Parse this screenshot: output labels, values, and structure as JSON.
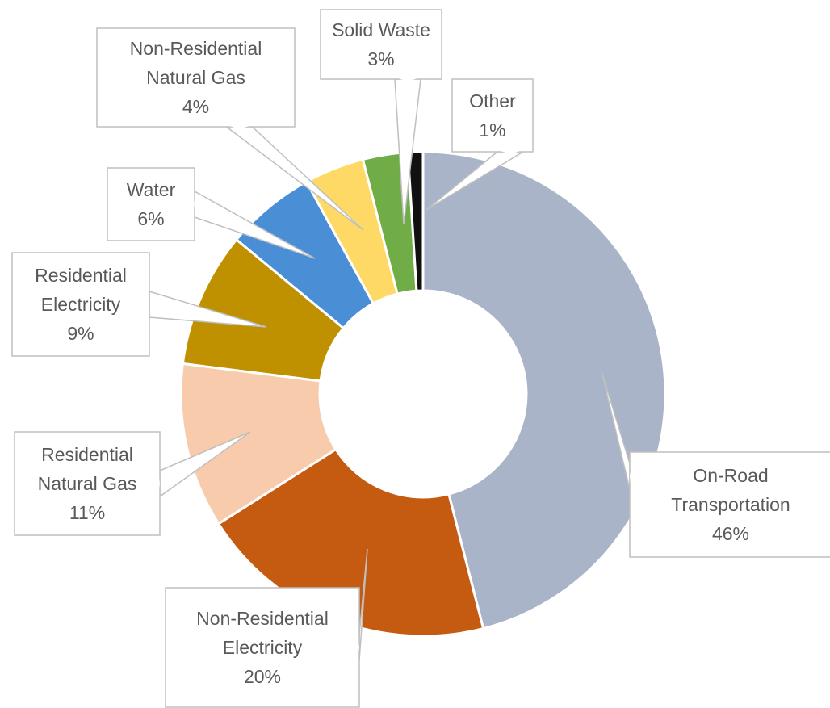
{
  "chart_data": {
    "type": "pie",
    "subtype": "doughnut",
    "categories": [
      "On-Road Transportation",
      "Non-Residential Electricity",
      "Residential Natural Gas",
      "Residential Electricity",
      "Water",
      "Non-Residential Natural Gas",
      "Solid Waste",
      "Other"
    ],
    "values": [
      46,
      20,
      11,
      9,
      6,
      4,
      3,
      1
    ],
    "unit": "%",
    "slices": [
      {
        "name": "On-Road Transportation",
        "label_lines": [
          "On-Road",
          "Transportation",
          "46%"
        ],
        "value": 46,
        "color": "#a9b4c9"
      },
      {
        "name": "Non-Residential Electricity",
        "label_lines": [
          "Non-Residential",
          "Electricity",
          "20%"
        ],
        "value": 20,
        "color": "#c55a11"
      },
      {
        "name": "Residential Natural Gas",
        "label_lines": [
          "Residential",
          "Natural Gas",
          "11%"
        ],
        "value": 11,
        "color": "#f8cbad"
      },
      {
        "name": "Residential Electricity",
        "label_lines": [
          "Residential",
          "Electricity",
          "9%"
        ],
        "value": 9,
        "color": "#bf9000"
      },
      {
        "name": "Water",
        "label_lines": [
          "Water",
          "6%"
        ],
        "value": 6,
        "color": "#4a8fd6"
      },
      {
        "name": "Non-Residential Natural Gas",
        "label_lines": [
          "Non-Residential",
          "Natural Gas",
          "4%"
        ],
        "value": 4,
        "color": "#ffd966"
      },
      {
        "name": "Solid Waste",
        "label_lines": [
          "Solid Waste",
          "3%"
        ],
        "value": 3,
        "color": "#70ad47"
      },
      {
        "name": "Other",
        "label_lines": [
          "Other",
          "1%"
        ],
        "value": 1,
        "color": "#111111"
      }
    ],
    "title": "",
    "legend": "none",
    "data_labels": "callouts"
  }
}
